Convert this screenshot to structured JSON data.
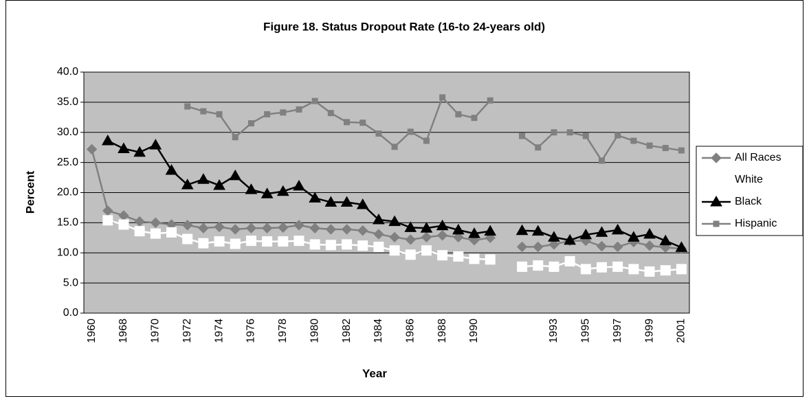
{
  "chart_data": {
    "type": "line",
    "title": "Figure 18. Status Dropout Rate (16-to 24-years old)",
    "x_label": "Year",
    "y_label": "Percent",
    "categories": [
      "1960",
      null,
      "1968",
      null,
      "1970",
      null,
      "1972",
      null,
      "1974",
      null,
      "1976",
      null,
      "1978",
      null,
      "1980",
      null,
      "1982",
      null,
      "1984",
      null,
      "1986",
      null,
      "1988",
      null,
      "1990",
      null,
      null,
      null,
      null,
      "1993",
      null,
      "1995",
      null,
      "1997",
      null,
      "1999",
      null,
      "2001"
    ],
    "series": [
      {
        "name": "All Races",
        "color": "#808080",
        "marker": "diamond",
        "values": [
          27.2,
          17.0,
          16.2,
          15.2,
          15.0,
          14.7,
          14.6,
          14.1,
          14.3,
          13.9,
          14.1,
          14.1,
          14.2,
          14.6,
          14.1,
          13.9,
          13.9,
          13.7,
          13.1,
          12.6,
          12.2,
          12.6,
          12.9,
          12.6,
          12.1,
          12.5,
          null,
          11.0,
          11.0,
          11.4,
          12.0,
          12.0,
          11.1,
          11.0,
          11.8,
          11.2,
          10.9,
          10.7
        ]
      },
      {
        "name": "White",
        "color": "#ffffff",
        "marker": "square",
        "values": [
          null,
          15.4,
          14.7,
          13.6,
          13.2,
          13.4,
          12.3,
          11.6,
          11.9,
          11.5,
          12.0,
          11.9,
          11.9,
          12.0,
          11.4,
          11.3,
          11.4,
          11.2,
          11.0,
          10.4,
          9.7,
          10.4,
          9.6,
          9.4,
          9.0,
          8.9,
          null,
          7.7,
          7.9,
          7.7,
          8.6,
          7.3,
          7.6,
          7.7,
          7.3,
          6.9,
          7.1,
          7.3
        ]
      },
      {
        "name": "Black",
        "color": "#000000",
        "marker": "triangle",
        "values": [
          null,
          28.6,
          27.3,
          26.7,
          27.9,
          23.7,
          21.3,
          22.2,
          21.2,
          22.8,
          20.5,
          19.8,
          20.2,
          21.1,
          19.1,
          18.4,
          18.4,
          18.0,
          15.5,
          15.2,
          14.2,
          14.1,
          14.5,
          13.8,
          13.2,
          13.6,
          null,
          13.7,
          13.6,
          12.6,
          12.1,
          13.0,
          13.4,
          13.8,
          12.6,
          13.1,
          12.0,
          10.9
        ]
      },
      {
        "name": "Hispanic",
        "color": "#808080",
        "marker": "small-square",
        "values": [
          null,
          null,
          null,
          null,
          null,
          null,
          34.3,
          33.5,
          33.0,
          29.2,
          31.5,
          33.0,
          33.3,
          33.8,
          35.2,
          33.2,
          31.7,
          31.6,
          29.8,
          27.6,
          30.1,
          28.6,
          35.8,
          33.0,
          32.4,
          35.3,
          null,
          29.4,
          27.5,
          30.0,
          30.0,
          29.4,
          25.3,
          29.5,
          28.6,
          27.8,
          27.4,
          27.0
        ]
      }
    ],
    "ylim": [
      0,
      40
    ],
    "yticks": [
      {
        "value": 0,
        "label": "0.0"
      },
      {
        "value": 5,
        "label": "5.0"
      },
      {
        "value": 10,
        "label": "10.0"
      },
      {
        "value": 15,
        "label": "15.0"
      },
      {
        "value": 20,
        "label": "20.0"
      },
      {
        "value": 25,
        "label": "25.0"
      },
      {
        "value": 30,
        "label": "30.0"
      },
      {
        "value": 35,
        "label": "35.0"
      },
      {
        "value": 40,
        "label": "40.0"
      }
    ],
    "grid": true,
    "plot_background": "#c0c0c0",
    "legend_position": "right"
  }
}
